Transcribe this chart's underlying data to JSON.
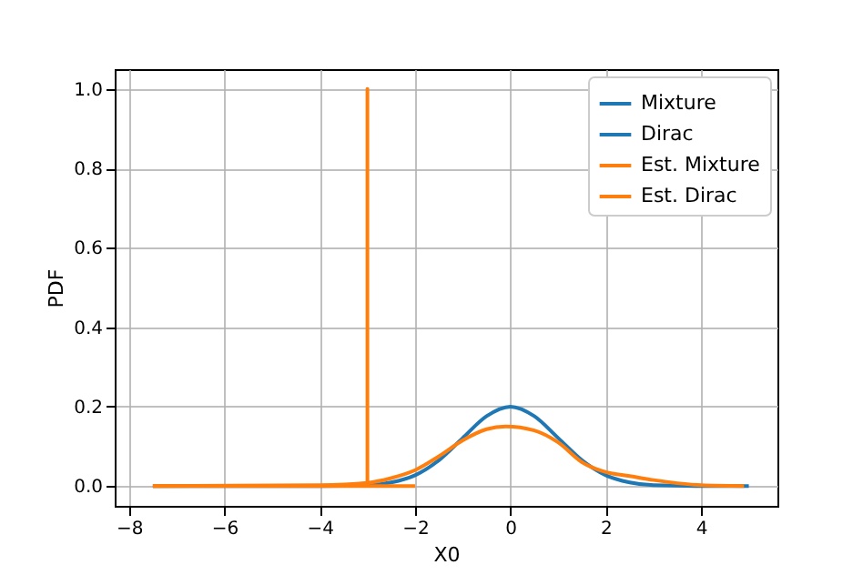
{
  "chart_data": {
    "type": "line",
    "xlabel": "X0",
    "ylabel": "PDF",
    "xlim": [
      -8.3,
      5.6
    ],
    "xticks": [
      -8,
      -6,
      -4,
      -2,
      0,
      2,
      4
    ],
    "ylim": [
      -0.05,
      1.05
    ],
    "yticks": [
      {
        "value": 0,
        "label": "0.0"
      },
      0.2,
      0.4,
      0.6,
      0.8,
      {
        "value": 1,
        "label": "1.0"
      }
    ],
    "grid": true,
    "legend": "top right",
    "series": [
      {
        "name": "Mixture",
        "color": "#1f77b4",
        "x": [
          -7.5,
          -4,
          -3,
          -2.5,
          -2,
          -1.5,
          -1,
          -0.5,
          0,
          0.5,
          1,
          1.5,
          2,
          2.5,
          3,
          4,
          5
        ],
        "values": [
          0,
          0,
          0.002,
          0.009,
          0.027,
          0.065,
          0.121,
          0.176,
          0.2,
          0.176,
          0.121,
          0.065,
          0.027,
          0.009,
          0.002,
          0,
          0
        ]
      },
      {
        "name": "Dirac",
        "color": "#1f77b4"
      },
      {
        "name": "Est. Mixture",
        "color": "#ff7f0e",
        "x": [
          -7.5,
          -4,
          -3,
          -2.5,
          -2,
          -1.5,
          -1,
          -0.5,
          -0.1,
          0.5,
          1,
          1.5,
          2,
          2.5,
          3,
          3.5,
          4,
          4.9
        ],
        "values": [
          0,
          0.002,
          0.008,
          0.02,
          0.04,
          0.075,
          0.115,
          0.143,
          0.15,
          0.14,
          0.11,
          0.06,
          0.035,
          0.025,
          0.015,
          0.007,
          0.002,
          0
        ]
      },
      {
        "name": "Est. Dirac",
        "color": "#ff7f0e",
        "x": [
          -7.5,
          -3,
          -3,
          -3,
          -2
        ],
        "values": [
          0,
          0,
          1,
          0,
          0
        ]
      }
    ]
  }
}
